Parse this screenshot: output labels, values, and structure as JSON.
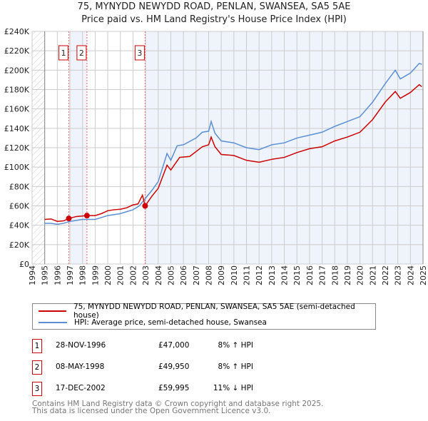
{
  "chart_data": {
    "type": "line",
    "title": "75, MYNYDD NEWYDD ROAD, PENLAN, SWANSEA, SA5 5AE",
    "subtitle": "Price paid vs. HM Land Registry's House Price Index (HPI)",
    "xlim": [
      1994,
      2025
    ],
    "ylim": [
      0,
      240000
    ],
    "x_ticks": [
      "1994",
      "1995",
      "1996",
      "1997",
      "1998",
      "1999",
      "2000",
      "2001",
      "2002",
      "2003",
      "2004",
      "2005",
      "2006",
      "2007",
      "2008",
      "2009",
      "2010",
      "2011",
      "2012",
      "2013",
      "2014",
      "2015",
      "2016",
      "2017",
      "2018",
      "2019",
      "2020",
      "2021",
      "2022",
      "2023",
      "2024",
      "2025"
    ],
    "y_ticks": [
      "£0",
      "£20K",
      "£40K",
      "£60K",
      "£80K",
      "£100K",
      "£120K",
      "£140K",
      "£160K",
      "£180K",
      "£200K",
      "£220K",
      "£240K"
    ],
    "grid": true,
    "series": [
      {
        "name": "75, MYNYDD NEWYDD ROAD, PENLAN, SWANSEA, SA5 5AE (semi-detached house)",
        "color": "#cc0000",
        "x": [
          1995,
          1995.5,
          1996,
          1996.5,
          1996.91,
          1997.5,
          1998.35,
          1999,
          1999.5,
          2000,
          2000.5,
          2001,
          2001.5,
          2002,
          2002.4,
          2002.75,
          2002.96,
          2003.5,
          2004,
          2004.7,
          2005,
          2005.7,
          2006.5,
          2007,
          2007.5,
          2008,
          2008.2,
          2008.5,
          2009,
          2010,
          2011,
          2012,
          2013,
          2014,
          2015,
          2016,
          2017,
          2018,
          2019,
          2020,
          2021,
          2022,
          2022.8,
          2023.2,
          2024,
          2024.7,
          2024.9
        ],
        "y": [
          46000,
          46500,
          44000,
          44500,
          47000,
          49000,
          49950,
          50000,
          52000,
          55000,
          56000,
          56500,
          58000,
          61000,
          62000,
          71000,
          59995,
          70000,
          78000,
          102000,
          97000,
          110000,
          111000,
          116000,
          121000,
          123000,
          131000,
          121000,
          113000,
          112000,
          107000,
          105000,
          108000,
          110000,
          115000,
          119000,
          121000,
          127000,
          131000,
          136000,
          149000,
          167000,
          178000,
          171000,
          177000,
          185000,
          183000
        ]
      },
      {
        "name": "HPI: Average price, semi-detached house, Swansea",
        "color": "#5b8fd4",
        "x": [
          1995,
          1995.5,
          1996,
          1996.5,
          1997,
          1997.5,
          1998,
          1999,
          1999.5,
          2000,
          2000.5,
          2001,
          2001.5,
          2002,
          2002.5,
          2003,
          2003.5,
          2004,
          2004.7,
          2005,
          2005.5,
          2006,
          2007,
          2007.5,
          2008,
          2008.2,
          2008.5,
          2009,
          2010,
          2011,
          2012,
          2013,
          2014,
          2015,
          2016,
          2017,
          2018,
          2019,
          2020,
          2021,
          2022,
          2022.8,
          2023.2,
          2024,
          2024.7,
          2024.9
        ],
        "y": [
          42000,
          42000,
          41000,
          42000,
          44000,
          45000,
          46000,
          46000,
          48000,
          50000,
          51000,
          52000,
          54000,
          56000,
          60000,
          68000,
          76000,
          85000,
          114000,
          107000,
          122000,
          123000,
          130000,
          136000,
          137000,
          147000,
          135000,
          127000,
          125000,
          120000,
          118000,
          123000,
          125000,
          130000,
          133000,
          136000,
          142000,
          147000,
          152000,
          167000,
          186000,
          200000,
          191000,
          197000,
          207000,
          206000
        ]
      }
    ],
    "sales": [
      {
        "label": "1",
        "x": 1996.91,
        "y": 47000
      },
      {
        "label": "2",
        "x": 1998.35,
        "y": 49950
      },
      {
        "label": "3",
        "x": 2002.96,
        "y": 59995
      }
    ]
  },
  "legend": {
    "red": "75, MYNYDD NEWYDD ROAD, PENLAN, SWANSEA, SA5 5AE (semi-detached house)",
    "blue": "HPI: Average price, semi-detached house, Swansea"
  },
  "table": [
    {
      "n": "1",
      "date": "28-NOV-1996",
      "price": "£47,000",
      "hpi": "8% ↑ HPI"
    },
    {
      "n": "2",
      "date": "08-MAY-1998",
      "price": "£49,950",
      "hpi": "8% ↑ HPI"
    },
    {
      "n": "3",
      "date": "17-DEC-2002",
      "price": "£59,995",
      "hpi": "11% ↓ HPI"
    }
  ],
  "footer": [
    "Contains HM Land Registry data © Crown copyright and database right 2025.",
    "This data is licensed under the Open Government Licence v3.0."
  ]
}
